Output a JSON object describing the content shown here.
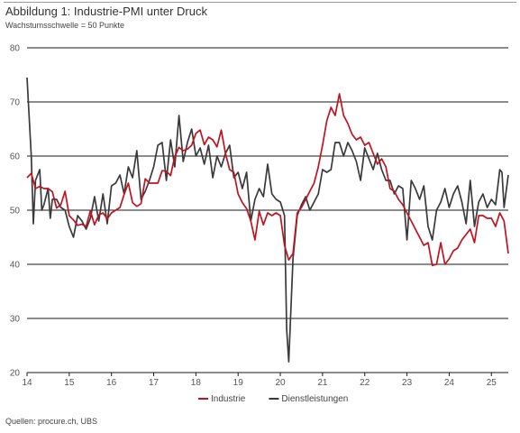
{
  "header": {
    "title": "Abbildung 1: Industrie-PMI unter Druck",
    "subtitle": "Wachstumsschwelle = 50 Punkte"
  },
  "footer": {
    "source": "Quellen: procure.ch, UBS"
  },
  "colors": {
    "industrie": "#c0131f",
    "dienstleistungen": "#3a3a3a",
    "grid": "#1a1a1a"
  },
  "chart_data": {
    "type": "line",
    "title": "Abbildung 1: Industrie-PMI unter Druck",
    "subtitle": "Wachstumsschwelle = 50 Punkte",
    "xlabel": "",
    "ylabel": "",
    "ylim": [
      20,
      80
    ],
    "yticks": [
      20,
      30,
      40,
      50,
      60,
      70,
      80
    ],
    "xlim": [
      2014.0,
      2025.4
    ],
    "xticks": [
      {
        "value": 2014,
        "label": "14"
      },
      {
        "value": 2015,
        "label": "15"
      },
      {
        "value": 2016,
        "label": "16"
      },
      {
        "value": 2017,
        "label": "17"
      },
      {
        "value": 2018,
        "label": "18"
      },
      {
        "value": 2019,
        "label": "19"
      },
      {
        "value": 2020,
        "label": "20"
      },
      {
        "value": 2021,
        "label": "21"
      },
      {
        "value": 2022,
        "label": "22"
      },
      {
        "value": 2023,
        "label": "23"
      },
      {
        "value": 2024,
        "label": "24"
      },
      {
        "value": 2025,
        "label": "25"
      }
    ],
    "grid": true,
    "legend": "bottom",
    "series": [
      {
        "name": "Industrie",
        "color": "#c0131f",
        "points": [
          [
            2014.0,
            56.0
          ],
          [
            2014.1,
            56.8
          ],
          [
            2014.2,
            54.0
          ],
          [
            2014.3,
            54.4
          ],
          [
            2014.4,
            54.0
          ],
          [
            2014.5,
            54.0
          ],
          [
            2014.6,
            53.4
          ],
          [
            2014.7,
            50.4
          ],
          [
            2014.8,
            51.0
          ],
          [
            2014.9,
            53.5
          ],
          [
            2015.0,
            49.0
          ],
          [
            2015.1,
            48.2
          ],
          [
            2015.2,
            47.2
          ],
          [
            2015.3,
            47.4
          ],
          [
            2015.4,
            47.0
          ],
          [
            2015.5,
            49.9
          ],
          [
            2015.6,
            47.3
          ],
          [
            2015.7,
            49.1
          ],
          [
            2015.8,
            49.5
          ],
          [
            2015.9,
            48.4
          ],
          [
            2016.0,
            49.5
          ],
          [
            2016.1,
            50.0
          ],
          [
            2016.2,
            50.5
          ],
          [
            2016.3,
            52.9
          ],
          [
            2016.4,
            55.0
          ],
          [
            2016.5,
            51.4
          ],
          [
            2016.6,
            50.7
          ],
          [
            2016.7,
            51.2
          ],
          [
            2016.8,
            55.8
          ],
          [
            2016.9,
            55.0
          ],
          [
            2017.0,
            55.0
          ],
          [
            2017.1,
            55.0
          ],
          [
            2017.2,
            57.3
          ],
          [
            2017.3,
            57.2
          ],
          [
            2017.4,
            56.4
          ],
          [
            2017.5,
            59.9
          ],
          [
            2017.6,
            61.6
          ],
          [
            2017.7,
            61.0
          ],
          [
            2017.8,
            61.3
          ],
          [
            2017.9,
            62.0
          ],
          [
            2018.0,
            64.2
          ],
          [
            2018.1,
            64.8
          ],
          [
            2018.2,
            62.1
          ],
          [
            2018.3,
            63.5
          ],
          [
            2018.4,
            63.0
          ],
          [
            2018.5,
            61.7
          ],
          [
            2018.6,
            64.8
          ],
          [
            2018.7,
            60.5
          ],
          [
            2018.8,
            57.5
          ],
          [
            2018.9,
            57.0
          ],
          [
            2019.0,
            53.0
          ],
          [
            2019.1,
            51.4
          ],
          [
            2019.2,
            50.3
          ],
          [
            2019.3,
            48.0
          ],
          [
            2019.4,
            44.5
          ],
          [
            2019.5,
            49.8
          ],
          [
            2019.6,
            47.3
          ],
          [
            2019.7,
            49.5
          ],
          [
            2019.8,
            49.0
          ],
          [
            2019.9,
            49.5
          ],
          [
            2020.0,
            49.0
          ],
          [
            2020.1,
            43.5
          ],
          [
            2020.2,
            40.8
          ],
          [
            2020.3,
            42.0
          ],
          [
            2020.4,
            49.5
          ],
          [
            2020.5,
            50.5
          ],
          [
            2020.6,
            52.0
          ],
          [
            2020.7,
            53.5
          ],
          [
            2020.8,
            55.0
          ],
          [
            2020.9,
            58.0
          ],
          [
            2021.0,
            62.0
          ],
          [
            2021.1,
            66.5
          ],
          [
            2021.2,
            69.0
          ],
          [
            2021.3,
            67.5
          ],
          [
            2021.4,
            71.5
          ],
          [
            2021.5,
            67.5
          ],
          [
            2021.6,
            66.0
          ],
          [
            2021.7,
            64.0
          ],
          [
            2021.8,
            63.0
          ],
          [
            2021.9,
            63.5
          ],
          [
            2022.0,
            62.0
          ],
          [
            2022.1,
            62.5
          ],
          [
            2022.2,
            60.5
          ],
          [
            2022.3,
            58.5
          ],
          [
            2022.4,
            59.5
          ],
          [
            2022.5,
            58.0
          ],
          [
            2022.6,
            54.0
          ],
          [
            2022.7,
            53.5
          ],
          [
            2022.8,
            52.0
          ],
          [
            2022.9,
            51.0
          ],
          [
            2023.0,
            49.5
          ],
          [
            2023.1,
            48.0
          ],
          [
            2023.2,
            46.5
          ],
          [
            2023.3,
            45.0
          ],
          [
            2023.4,
            43.5
          ],
          [
            2023.5,
            44.0
          ],
          [
            2023.6,
            39.8
          ],
          [
            2023.7,
            40.0
          ],
          [
            2023.8,
            44.0
          ],
          [
            2023.9,
            40.0
          ],
          [
            2024.0,
            41.0
          ],
          [
            2024.1,
            42.5
          ],
          [
            2024.2,
            43.0
          ],
          [
            2024.3,
            44.5
          ],
          [
            2024.4,
            45.5
          ],
          [
            2024.5,
            46.5
          ],
          [
            2024.6,
            44.0
          ],
          [
            2024.7,
            49.0
          ],
          [
            2024.8,
            49.0
          ],
          [
            2024.9,
            48.5
          ],
          [
            2025.0,
            48.5
          ],
          [
            2025.1,
            47.0
          ],
          [
            2025.2,
            49.5
          ],
          [
            2025.3,
            48.0
          ],
          [
            2025.4,
            42.0
          ]
        ]
      },
      {
        "name": "Dienstleistungen",
        "color": "#3a3a3a",
        "points": [
          [
            2014.0,
            74.5
          ],
          [
            2014.1,
            60.0
          ],
          [
            2014.15,
            47.5
          ],
          [
            2014.2,
            55.5
          ],
          [
            2014.3,
            57.5
          ],
          [
            2014.35,
            50.0
          ],
          [
            2014.4,
            51.0
          ],
          [
            2014.5,
            54.0
          ],
          [
            2014.55,
            48.5
          ],
          [
            2014.6,
            52.0
          ],
          [
            2014.7,
            52.0
          ],
          [
            2014.8,
            50.5
          ],
          [
            2014.9,
            50.0
          ],
          [
            2015.0,
            47.0
          ],
          [
            2015.1,
            45.0
          ],
          [
            2015.2,
            49.0
          ],
          [
            2015.3,
            48.0
          ],
          [
            2015.4,
            46.5
          ],
          [
            2015.5,
            48.5
          ],
          [
            2015.6,
            52.5
          ],
          [
            2015.7,
            48.0
          ],
          [
            2015.8,
            53.0
          ],
          [
            2015.9,
            47.5
          ],
          [
            2016.0,
            54.5
          ],
          [
            2016.1,
            55.0
          ],
          [
            2016.2,
            56.5
          ],
          [
            2016.3,
            53.0
          ],
          [
            2016.4,
            58.0
          ],
          [
            2016.5,
            56.0
          ],
          [
            2016.6,
            61.0
          ],
          [
            2016.7,
            52.0
          ],
          [
            2016.8,
            53.5
          ],
          [
            2016.9,
            55.5
          ],
          [
            2017.0,
            58.0
          ],
          [
            2017.1,
            62.0
          ],
          [
            2017.2,
            62.5
          ],
          [
            2017.3,
            55.5
          ],
          [
            2017.4,
            63.0
          ],
          [
            2017.5,
            58.0
          ],
          [
            2017.6,
            67.5
          ],
          [
            2017.7,
            59.0
          ],
          [
            2017.8,
            62.5
          ],
          [
            2017.9,
            65.0
          ],
          [
            2018.0,
            60.0
          ],
          [
            2018.1,
            61.5
          ],
          [
            2018.2,
            58.5
          ],
          [
            2018.3,
            62.0
          ],
          [
            2018.4,
            56.0
          ],
          [
            2018.5,
            60.0
          ],
          [
            2018.6,
            58.0
          ],
          [
            2018.7,
            60.5
          ],
          [
            2018.8,
            62.0
          ],
          [
            2018.9,
            56.0
          ],
          [
            2019.0,
            57.0
          ],
          [
            2019.1,
            54.0
          ],
          [
            2019.2,
            57.0
          ],
          [
            2019.3,
            48.0
          ],
          [
            2019.4,
            52.0
          ],
          [
            2019.5,
            54.0
          ],
          [
            2019.6,
            52.5
          ],
          [
            2019.7,
            58.5
          ],
          [
            2019.8,
            53.0
          ],
          [
            2019.9,
            52.0
          ],
          [
            2020.0,
            51.5
          ],
          [
            2020.1,
            49.0
          ],
          [
            2020.15,
            28.0
          ],
          [
            2020.2,
            22.0
          ],
          [
            2020.3,
            41.0
          ],
          [
            2020.4,
            49.0
          ],
          [
            2020.5,
            51.0
          ],
          [
            2020.6,
            52.5
          ],
          [
            2020.7,
            50.0
          ],
          [
            2020.8,
            51.5
          ],
          [
            2020.9,
            53.0
          ],
          [
            2021.0,
            57.5
          ],
          [
            2021.1,
            57.0
          ],
          [
            2021.2,
            57.5
          ],
          [
            2021.3,
            62.5
          ],
          [
            2021.4,
            62.5
          ],
          [
            2021.5,
            60.0
          ],
          [
            2021.6,
            62.5
          ],
          [
            2021.7,
            61.0
          ],
          [
            2021.8,
            59.0
          ],
          [
            2021.9,
            55.5
          ],
          [
            2022.0,
            61.5
          ],
          [
            2022.1,
            59.5
          ],
          [
            2022.2,
            57.5
          ],
          [
            2022.3,
            60.5
          ],
          [
            2022.4,
            57.5
          ],
          [
            2022.5,
            55.5
          ],
          [
            2022.6,
            55.5
          ],
          [
            2022.7,
            53.0
          ],
          [
            2022.8,
            54.5
          ],
          [
            2022.9,
            54.0
          ],
          [
            2023.0,
            44.5
          ],
          [
            2023.1,
            55.5
          ],
          [
            2023.2,
            54.0
          ],
          [
            2023.3,
            52.0
          ],
          [
            2023.4,
            54.5
          ],
          [
            2023.5,
            47.0
          ],
          [
            2023.6,
            44.5
          ],
          [
            2023.7,
            50.0
          ],
          [
            2023.8,
            51.5
          ],
          [
            2023.9,
            54.0
          ],
          [
            2024.0,
            50.5
          ],
          [
            2024.1,
            53.0
          ],
          [
            2024.2,
            54.5
          ],
          [
            2024.3,
            51.5
          ],
          [
            2024.4,
            47.5
          ],
          [
            2024.5,
            55.5
          ],
          [
            2024.6,
            47.0
          ],
          [
            2024.7,
            51.5
          ],
          [
            2024.8,
            53.0
          ],
          [
            2024.9,
            50.5
          ],
          [
            2025.0,
            52.0
          ],
          [
            2025.1,
            51.0
          ],
          [
            2025.2,
            57.5
          ],
          [
            2025.25,
            57.0
          ],
          [
            2025.3,
            50.5
          ],
          [
            2025.4,
            56.5
          ]
        ]
      }
    ]
  }
}
